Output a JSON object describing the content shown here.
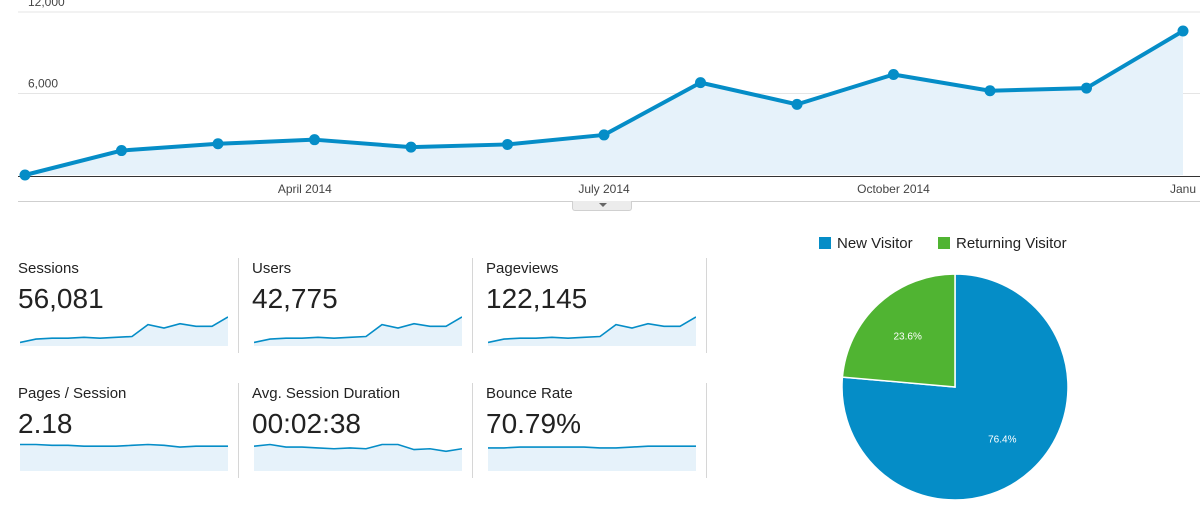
{
  "colors": {
    "line": "#058dc7",
    "area_fill": "#e6f2fa",
    "new_visitor": "#058dc7",
    "returning_visitor": "#50b432",
    "gridline": "#e5e5e5"
  },
  "chart_data": [
    {
      "type": "area",
      "y_ticks": [
        "12,000",
        "6,000"
      ],
      "ylim": [
        0,
        12000
      ],
      "x_tick_labels": [
        "April 2014",
        "July 2014",
        "October 2014",
        "Janu"
      ],
      "points": [
        0,
        1,
        2,
        3,
        4,
        5,
        6,
        7,
        8,
        9,
        10,
        11,
        12
      ],
      "values": [
        0,
        1800,
        2300,
        2600,
        2050,
        2250,
        2950,
        6800,
        5200,
        7400,
        6200,
        6400,
        10600
      ],
      "grid": true
    },
    {
      "type": "pie",
      "slices": [
        {
          "label": "New Visitor",
          "value": 76.4,
          "value_label": "76.4%",
          "color": "#058dc7"
        },
        {
          "label": "Returning Visitor",
          "value": 23.6,
          "value_label": "23.6%",
          "color": "#50b432"
        }
      ],
      "legend": "top"
    }
  ],
  "metrics": [
    {
      "label": "Sessions",
      "value": "56,081",
      "spark": [
        3,
        7,
        8,
        8,
        9,
        8,
        9,
        10,
        24,
        20,
        25,
        22,
        22,
        33
      ]
    },
    {
      "label": "Users",
      "value": "42,775",
      "spark": [
        3,
        7,
        8,
        8,
        9,
        8,
        9,
        10,
        24,
        20,
        25,
        22,
        22,
        33
      ]
    },
    {
      "label": "Pageviews",
      "value": "122,145",
      "spark": [
        3,
        7,
        8,
        8,
        9,
        8,
        9,
        10,
        24,
        20,
        25,
        22,
        22,
        33
      ]
    },
    {
      "label": "Pages / Session",
      "value": "2.18",
      "spark": [
        30,
        30,
        29,
        29,
        28,
        28,
        28,
        29,
        30,
        29,
        27,
        28,
        28,
        28
      ]
    },
    {
      "label": "Avg. Session Duration",
      "value": "00:02:38",
      "spark": [
        28,
        30,
        27,
        27,
        26,
        25,
        26,
        25,
        30,
        30,
        24,
        25,
        22,
        25
      ]
    },
    {
      "label": "Bounce Rate",
      "value": "70.79%",
      "spark": [
        26,
        26,
        27,
        27,
        27,
        27,
        27,
        26,
        26,
        27,
        28,
        28,
        28,
        28
      ]
    }
  ]
}
